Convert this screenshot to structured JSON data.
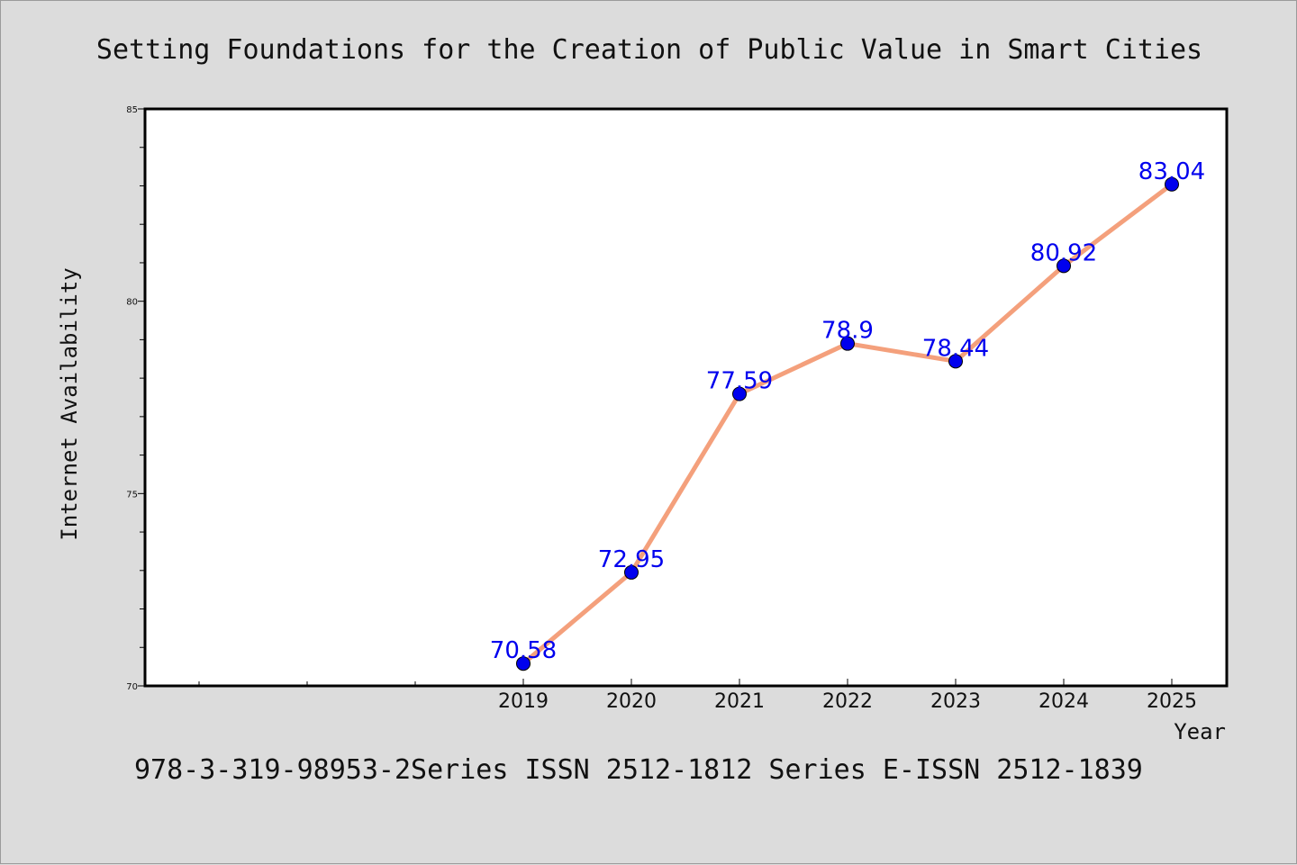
{
  "chart_data": {
    "type": "line",
    "title": "Setting Foundations for the Creation of Public Value in Smart Cities",
    "xlabel": "Year",
    "ylabel": "Internet Availability",
    "categories": [
      "2019",
      "2020",
      "2021",
      "2022",
      "2023",
      "2024",
      "2025"
    ],
    "series": [
      {
        "values": [
          70.58,
          72.95,
          77.59,
          78.9,
          78.44,
          80.92,
          83.04
        ]
      }
    ],
    "data_labels": [
      "70.58",
      "72.95",
      "77.59",
      "78.9",
      "78.44",
      "80.92",
      "83.04"
    ],
    "ylim": [
      70,
      85
    ],
    "yticks": [
      "70",
      "75",
      "80",
      "85"
    ],
    "grid": false,
    "legend": "none",
    "colors": {
      "line": "#f4a07c",
      "marker": "#0000ee",
      "data_label": "#0000ee",
      "background": "#dcdcdc",
      "plot_background": "#ffffff"
    }
  },
  "footer_text": "978-3-319-98953-2Series ISSN 2512-1812 Series E-ISSN 2512-1839"
}
